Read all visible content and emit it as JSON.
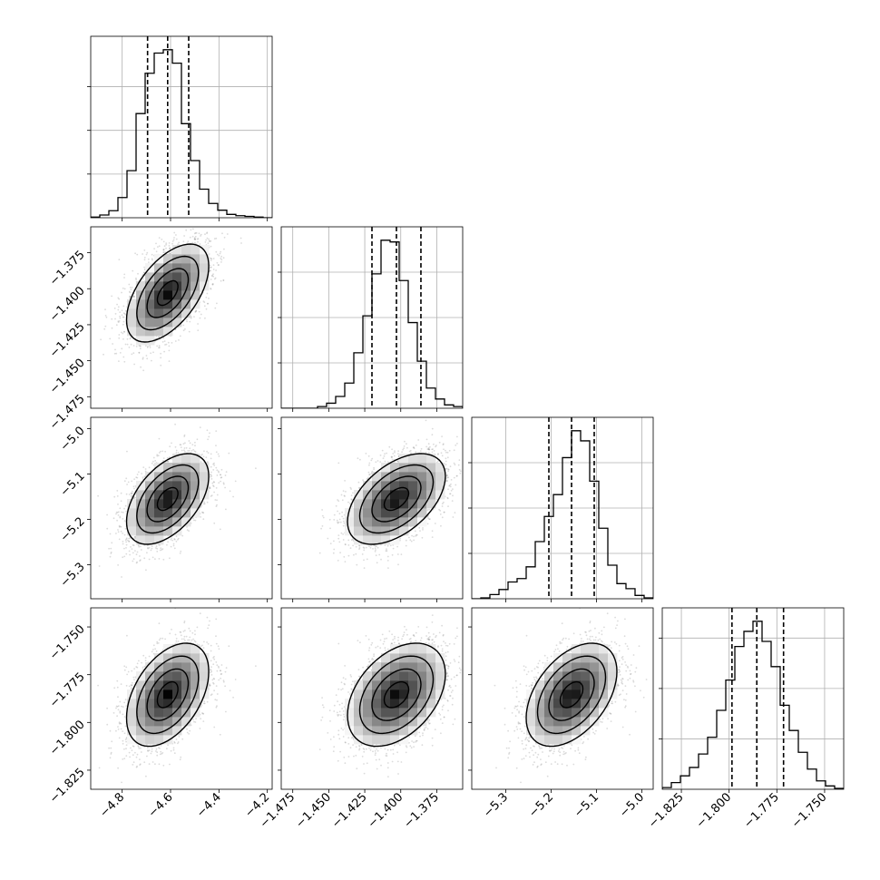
{
  "chart_data": {
    "type": "corner",
    "grid": true,
    "ndim": 4,
    "parameters": [
      {
        "range": [
          -4.93,
          -4.18
        ],
        "ticks": [
          -4.8,
          -4.6,
          -4.4,
          -4.2
        ],
        "tick_labels": [
          "−4.8",
          "−4.6",
          "−4.4",
          "−4.2"
        ],
        "quantiles": [
          -4.695,
          -4.612,
          -4.525
        ],
        "hist_y_ticks": [
          0.26,
          0.52,
          0.78
        ],
        "hist": {
          "edges": [
            -4.93,
            -4.8925,
            -4.855,
            -4.8175,
            -4.78,
            -4.7425,
            -4.705,
            -4.6675,
            -4.63,
            -4.5925,
            -4.555,
            -4.5175,
            -4.48,
            -4.4425,
            -4.405,
            -4.3675,
            -4.33,
            -4.2925,
            -4.255,
            -4.2175,
            -4.18
          ],
          "counts": [
            0.004,
            0.016,
            0.042,
            0.12,
            0.28,
            0.62,
            0.86,
            0.98,
            1.0,
            0.92,
            0.56,
            0.34,
            0.17,
            0.085,
            0.045,
            0.02,
            0.012,
            0.008,
            0.004,
            0.0
          ]
        }
      },
      {
        "range": [
          -1.483,
          -1.357
        ],
        "ticks": [
          -1.475,
          -1.45,
          -1.425,
          -1.4,
          -1.375
        ],
        "tick_labels": [
          "−1.475",
          "−1.450",
          "−1.425",
          "−1.400",
          "−1.375"
        ],
        "quantiles": [
          -1.42,
          -1.403,
          -1.386
        ],
        "hist_y_ticks": [
          0.27,
          0.54,
          0.81
        ],
        "hist": {
          "edges": [
            -1.483,
            -1.4767,
            -1.4704,
            -1.4641,
            -1.4578,
            -1.4515,
            -1.4452,
            -1.4389,
            -1.4326,
            -1.4263,
            -1.42,
            -1.4137,
            -1.4074,
            -1.4011,
            -1.3948,
            -1.3885,
            -1.3822,
            -1.3759,
            -1.3696,
            -1.3633,
            -1.357
          ],
          "counts": [
            0.0,
            0.0,
            0.0,
            0.0,
            0.01,
            0.03,
            0.07,
            0.15,
            0.33,
            0.55,
            0.8,
            1.0,
            0.99,
            0.76,
            0.51,
            0.28,
            0.12,
            0.055,
            0.02,
            0.01
          ]
        }
      },
      {
        "range": [
          -5.375,
          -4.975
        ],
        "ticks": [
          -5.3,
          -5.2,
          -5.1,
          -5.0
        ],
        "tick_labels": [
          "−5.3",
          "−5.2",
          "−5.1",
          "−5.0"
        ],
        "quantiles": [
          -5.205,
          -5.155,
          -5.105
        ],
        "hist_y_ticks": [
          0.27,
          0.54,
          0.81
        ],
        "hist": {
          "edges": [
            -5.375,
            -5.355,
            -5.335,
            -5.315,
            -5.295,
            -5.275,
            -5.255,
            -5.235,
            -5.215,
            -5.195,
            -5.175,
            -5.155,
            -5.135,
            -5.115,
            -5.095,
            -5.075,
            -5.055,
            -5.035,
            -5.015,
            -4.995,
            -4.975
          ],
          "counts": [
            0.0,
            0.005,
            0.025,
            0.055,
            0.1,
            0.12,
            0.19,
            0.34,
            0.49,
            0.62,
            0.84,
            1.0,
            0.94,
            0.7,
            0.42,
            0.2,
            0.09,
            0.06,
            0.02,
            0.005
          ]
        }
      },
      {
        "range": [
          -1.835,
          -1.74
        ],
        "ticks": [
          -1.825,
          -1.8,
          -1.775,
          -1.75
        ],
        "tick_labels": [
          "−1.825",
          "−1.800",
          "−1.775",
          "−1.750"
        ],
        "quantiles": [
          -1.7985,
          -1.7855,
          -1.7715
        ],
        "hist_y_ticks": [
          0.3,
          0.6,
          0.9
        ],
        "hist": {
          "edges": [
            -1.835,
            -1.83025,
            -1.8255,
            -1.82075,
            -1.816,
            -1.81125,
            -1.8065,
            -1.80175,
            -1.797,
            -1.79225,
            -1.7875,
            -1.78275,
            -1.778,
            -1.77325,
            -1.7685,
            -1.76375,
            -1.759,
            -1.75425,
            -1.7495,
            -1.74475,
            -1.74
          ],
          "counts": [
            0.01,
            0.04,
            0.08,
            0.13,
            0.21,
            0.31,
            0.47,
            0.65,
            0.85,
            0.94,
            1.0,
            0.88,
            0.73,
            0.5,
            0.35,
            0.22,
            0.12,
            0.05,
            0.02,
            0.005
          ]
        }
      }
    ],
    "correlation": [
      [
        1.0,
        0.55,
        0.5,
        0.45
      ],
      [
        0.55,
        1.0,
        0.5,
        0.4
      ],
      [
        0.5,
        0.5,
        1.0,
        0.45
      ],
      [
        0.45,
        0.4,
        0.45,
        1.0
      ]
    ],
    "contour_levels_sigma": [
      0.5,
      1.0,
      1.5,
      2.0
    ]
  }
}
